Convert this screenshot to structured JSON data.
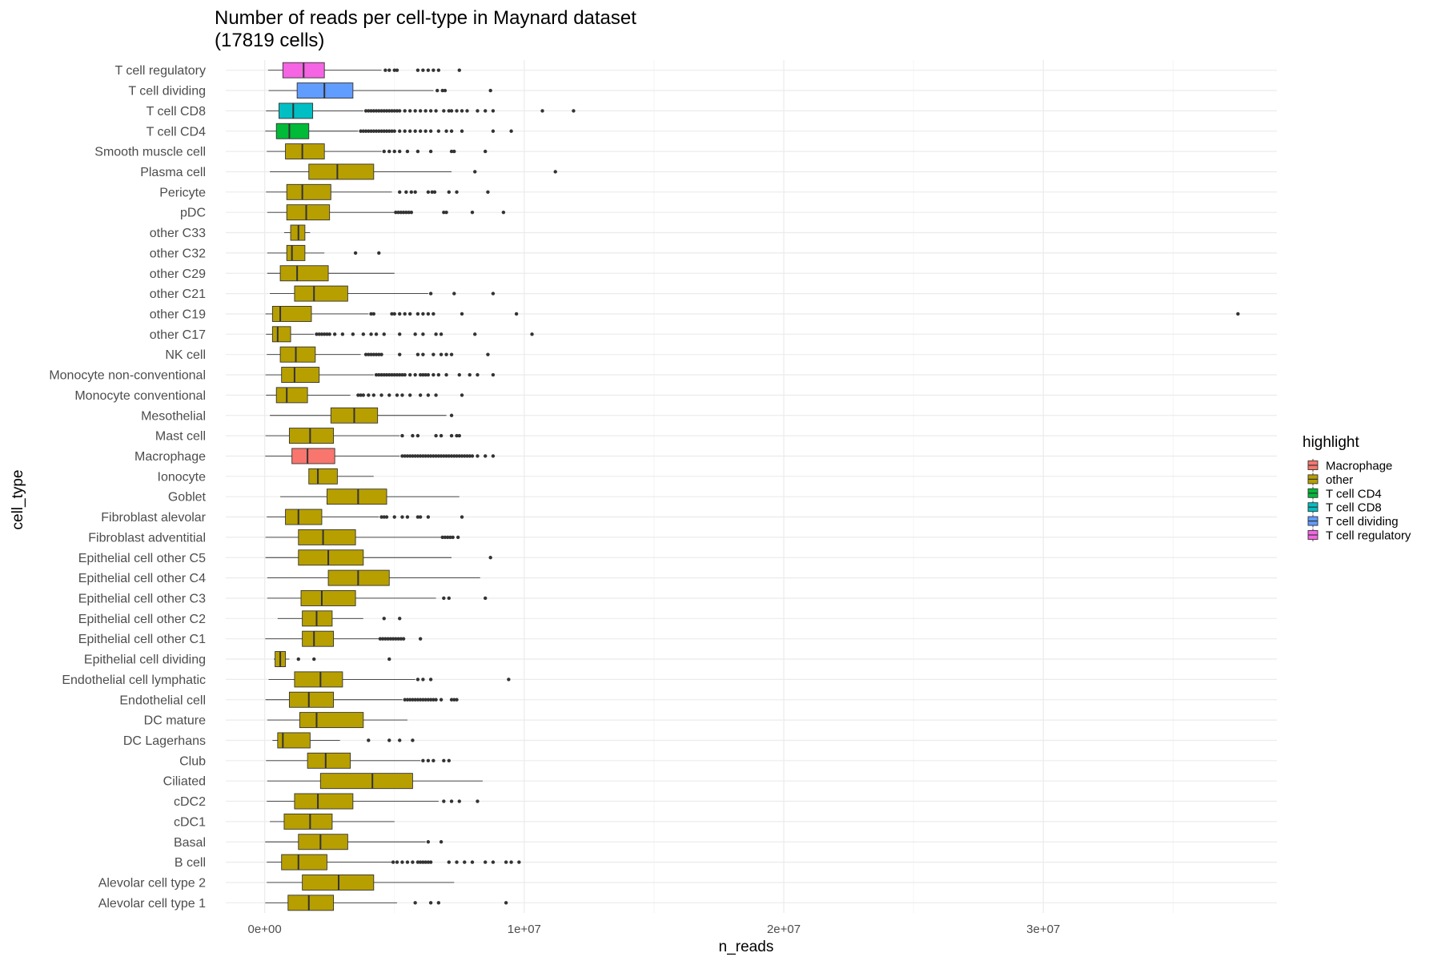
{
  "chart_data": {
    "type": "boxplot",
    "orientation": "horizontal",
    "title": [
      "Number of reads per cell-type in Maynard dataset",
      "(17819 cells)"
    ],
    "xlabel": "n_reads",
    "ylabel": "cell_type",
    "xlim": [
      -1500000,
      39000000
    ],
    "x_ticks": [
      {
        "value": 0,
        "label": "0e+00"
      },
      {
        "value": 10000000,
        "label": "1e+07"
      },
      {
        "value": 20000000,
        "label": "2e+07"
      },
      {
        "value": 30000000,
        "label": "3e+07"
      }
    ],
    "x_minor_ticks": [
      5000000,
      15000000,
      25000000,
      35000000
    ],
    "grid": true,
    "legend": {
      "title": "highlight",
      "position": "right",
      "entries": [
        {
          "label": "Macrophage",
          "color": "#F8766D"
        },
        {
          "label": "other",
          "color": "#B79F00"
        },
        {
          "label": "T cell CD4",
          "color": "#00BA38"
        },
        {
          "label": "T cell CD8",
          "color": "#00BFC4"
        },
        {
          "label": "T cell dividing",
          "color": "#619CFF"
        },
        {
          "label": "T cell regulatory",
          "color": "#F564E3"
        }
      ]
    },
    "categories": [
      {
        "name": "T cell regulatory",
        "group": "T cell regulatory",
        "stats": [
          130000,
          700000,
          1500000,
          2300000,
          4500000
        ],
        "outliers": [
          4650000,
          4800000,
          5000000,
          5100000,
          5900000,
          6100000,
          6300000,
          6500000,
          6700000,
          7500000
        ]
      },
      {
        "name": "T cell dividing",
        "group": "T cell dividing",
        "stats": [
          150000,
          1250000,
          2300000,
          3400000,
          6500000
        ],
        "outliers": [
          6650000,
          6850000,
          6950000,
          8700000
        ]
      },
      {
        "name": "T cell CD8",
        "group": "T cell CD8",
        "stats": [
          50000,
          550000,
          1100000,
          1850000,
          3800000
        ],
        "outliers": [
          3900000,
          4000000,
          4100000,
          4200000,
          4300000,
          4400000,
          4500000,
          4600000,
          4700000,
          4800000,
          4900000,
          5000000,
          5100000,
          5200000,
          5400000,
          5600000,
          5800000,
          6000000,
          6200000,
          6400000,
          6600000,
          6900000,
          7100000,
          7200000,
          7400000,
          7600000,
          7800000,
          8200000,
          8500000,
          8800000,
          10700000,
          11900000
        ]
      },
      {
        "name": "T cell CD4",
        "group": "T cell CD4",
        "stats": [
          20000,
          450000,
          950000,
          1700000,
          3600000
        ],
        "outliers": [
          3700000,
          3800000,
          3900000,
          4000000,
          4100000,
          4200000,
          4300000,
          4400000,
          4500000,
          4600000,
          4700000,
          4800000,
          4900000,
          5000000,
          5200000,
          5400000,
          5600000,
          5800000,
          6000000,
          6200000,
          6400000,
          6700000,
          7000000,
          7200000,
          7600000,
          8800000,
          9500000
        ]
      },
      {
        "name": "Smooth muscle cell",
        "group": "other",
        "stats": [
          80000,
          800000,
          1450000,
          2300000,
          4500000
        ],
        "outliers": [
          4600000,
          4800000,
          5000000,
          5200000,
          5500000,
          5900000,
          6400000,
          7200000,
          7300000,
          8500000
        ]
      },
      {
        "name": "Plasma cell",
        "group": "other",
        "stats": [
          200000,
          1700000,
          2800000,
          4200000,
          7200000
        ],
        "outliers": [
          8100000,
          11200000
        ]
      },
      {
        "name": "Pericyte",
        "group": "other",
        "stats": [
          50000,
          850000,
          1450000,
          2550000,
          4900000
        ],
        "outliers": [
          5200000,
          5450000,
          5650000,
          5800000,
          6300000,
          6450000,
          6550000,
          7100000,
          7400000,
          8600000
        ]
      },
      {
        "name": "pDC",
        "group": "other",
        "stats": [
          100000,
          850000,
          1600000,
          2500000,
          5000000
        ],
        "outliers": [
          5050000,
          5150000,
          5250000,
          5350000,
          5450000,
          5550000,
          5650000,
          6900000,
          7000000,
          8000000,
          9200000
        ]
      },
      {
        "name": "other C33",
        "group": "other",
        "stats": [
          750000,
          1000000,
          1300000,
          1550000,
          1750000
        ],
        "outliers": []
      },
      {
        "name": "other C32",
        "group": "other",
        "stats": [
          100000,
          850000,
          1050000,
          1550000,
          2300000
        ],
        "outliers": [
          3500000,
          4400000
        ]
      },
      {
        "name": "other C29",
        "group": "other",
        "stats": [
          100000,
          600000,
          1250000,
          2450000,
          5000000
        ],
        "outliers": []
      },
      {
        "name": "other C21",
        "group": "other",
        "stats": [
          200000,
          1150000,
          1900000,
          3200000,
          6300000
        ],
        "outliers": [
          6400000,
          7300000,
          8800000
        ]
      },
      {
        "name": "other C19",
        "group": "other",
        "stats": [
          30000,
          300000,
          600000,
          1800000,
          4000000
        ],
        "outliers": [
          4100000,
          4200000,
          4900000,
          5000000,
          5200000,
          5400000,
          5600000,
          5900000,
          6100000,
          6300000,
          6500000,
          7600000,
          9700000,
          37500000
        ]
      },
      {
        "name": "other C17",
        "group": "other",
        "stats": [
          50000,
          300000,
          500000,
          1000000,
          1900000
        ],
        "outliers": [
          2000000,
          2100000,
          2200000,
          2300000,
          2400000,
          2500000,
          2700000,
          3000000,
          3400000,
          3800000,
          4100000,
          4300000,
          4600000,
          5200000,
          5800000,
          6100000,
          6600000,
          6800000,
          8100000,
          10300000
        ]
      },
      {
        "name": "NK cell",
        "group": "other",
        "stats": [
          80000,
          600000,
          1200000,
          1950000,
          3700000
        ],
        "outliers": [
          3900000,
          4000000,
          4100000,
          4200000,
          4300000,
          4400000,
          4500000,
          5200000,
          5900000,
          6100000,
          6500000,
          6800000,
          7000000,
          7200000,
          8600000
        ]
      },
      {
        "name": "Monocyte non-conventional",
        "group": "other",
        "stats": [
          30000,
          650000,
          1150000,
          2100000,
          4200000
        ],
        "outliers": [
          4300000,
          4400000,
          4500000,
          4600000,
          4700000,
          4800000,
          4900000,
          5000000,
          5100000,
          5200000,
          5300000,
          5400000,
          5600000,
          5800000,
          6000000,
          6100000,
          6200000,
          6300000,
          6500000,
          6700000,
          7000000,
          7500000,
          7900000,
          8200000,
          8800000
        ]
      },
      {
        "name": "Monocyte conventional",
        "group": "other",
        "stats": [
          50000,
          450000,
          850000,
          1650000,
          3300000
        ],
        "outliers": [
          3600000,
          3700000,
          3800000,
          4000000,
          4200000,
          4500000,
          4800000,
          5100000,
          5300000,
          5600000,
          6000000,
          6300000,
          6600000,
          7600000
        ]
      },
      {
        "name": "Mesothelial",
        "group": "other",
        "stats": [
          200000,
          2550000,
          3450000,
          4350000,
          7000000
        ],
        "outliers": [
          7200000
        ]
      },
      {
        "name": "Mast cell",
        "group": "other",
        "stats": [
          30000,
          950000,
          1750000,
          2650000,
          5200000
        ],
        "outliers": [
          5300000,
          5700000,
          5900000,
          6600000,
          6800000,
          7200000,
          7400000,
          7500000
        ]
      },
      {
        "name": "Macrophage",
        "group": "Macrophage",
        "stats": [
          20000,
          1050000,
          1650000,
          2700000,
          5200000
        ],
        "outliers": [
          5300000,
          5400000,
          5500000,
          5600000,
          5700000,
          5800000,
          5900000,
          6000000,
          6100000,
          6200000,
          6300000,
          6400000,
          6500000,
          6600000,
          6700000,
          6800000,
          6900000,
          7000000,
          7100000,
          7200000,
          7300000,
          7400000,
          7500000,
          7600000,
          7700000,
          7800000,
          7900000,
          8000000,
          8200000,
          8500000,
          8800000
        ]
      },
      {
        "name": "Ionocyte",
        "group": "other",
        "stats": [
          1700000,
          1700000,
          2050000,
          2800000,
          4200000
        ],
        "outliers": []
      },
      {
        "name": "Goblet",
        "group": "other",
        "stats": [
          600000,
          2400000,
          3600000,
          4700000,
          7500000
        ],
        "outliers": []
      },
      {
        "name": "Fibroblast alevolar",
        "group": "other",
        "stats": [
          80000,
          800000,
          1300000,
          2200000,
          4400000
        ],
        "outliers": [
          4500000,
          4600000,
          4700000,
          5000000,
          5300000,
          5500000,
          5900000,
          6000000,
          6300000,
          7600000
        ]
      },
      {
        "name": "Fibroblast adventitial",
        "group": "other",
        "stats": [
          30000,
          1300000,
          2250000,
          3500000,
          6800000
        ],
        "outliers": [
          6850000,
          6950000,
          7050000,
          7150000,
          7250000,
          7450000
        ]
      },
      {
        "name": "Epithelial cell other C5",
        "group": "other",
        "stats": [
          30000,
          1300000,
          2450000,
          3800000,
          7200000
        ],
        "outliers": [
          8700000
        ]
      },
      {
        "name": "Epithelial cell other C4",
        "group": "other",
        "stats": [
          100000,
          2450000,
          3600000,
          4800000,
          8300000
        ],
        "outliers": []
      },
      {
        "name": "Epithelial cell other C3",
        "group": "other",
        "stats": [
          100000,
          1400000,
          2200000,
          3500000,
          6600000
        ],
        "outliers": [
          6900000,
          7100000,
          8500000
        ]
      },
      {
        "name": "Epithelial cell other C2",
        "group": "other",
        "stats": [
          500000,
          1450000,
          2000000,
          2600000,
          3800000
        ],
        "outliers": [
          4600000,
          5200000
        ]
      },
      {
        "name": "Epithelial cell other C1",
        "group": "other",
        "stats": [
          20000,
          1450000,
          1900000,
          2650000,
          4400000
        ],
        "outliers": [
          4450000,
          4550000,
          4650000,
          4750000,
          4850000,
          4950000,
          5050000,
          5150000,
          5250000,
          5350000,
          6000000
        ]
      },
      {
        "name": "Epithelial cell dividing",
        "group": "other",
        "stats": [
          350000,
          400000,
          600000,
          800000,
          950000
        ],
        "outliers": [
          1300000,
          1900000,
          4800000
        ]
      },
      {
        "name": "Endothelial cell lymphatic",
        "group": "other",
        "stats": [
          150000,
          1150000,
          2150000,
          3000000,
          5800000
        ],
        "outliers": [
          5900000,
          6100000,
          6400000,
          9400000
        ]
      },
      {
        "name": "Endothelial cell",
        "group": "other",
        "stats": [
          30000,
          950000,
          1700000,
          2650000,
          5300000
        ],
        "outliers": [
          5400000,
          5500000,
          5600000,
          5700000,
          5800000,
          5900000,
          6000000,
          6100000,
          6200000,
          6300000,
          6400000,
          6500000,
          6600000,
          6800000,
          7200000,
          7300000,
          7400000
        ]
      },
      {
        "name": "DC mature",
        "group": "other",
        "stats": [
          100000,
          1350000,
          2000000,
          3800000,
          5500000
        ],
        "outliers": []
      },
      {
        "name": "DC Lagerhans",
        "group": "other",
        "stats": [
          300000,
          500000,
          700000,
          1750000,
          2900000
        ],
        "outliers": [
          4000000,
          4800000,
          5200000,
          5700000
        ]
      },
      {
        "name": "Club",
        "group": "other",
        "stats": [
          50000,
          1650000,
          2350000,
          3300000,
          6000000
        ],
        "outliers": [
          6100000,
          6300000,
          6500000,
          6900000,
          7100000
        ]
      },
      {
        "name": "Ciliated",
        "group": "other",
        "stats": [
          100000,
          2150000,
          4150000,
          5700000,
          8400000
        ],
        "outliers": []
      },
      {
        "name": "cDC2",
        "group": "other",
        "stats": [
          80000,
          1150000,
          2050000,
          3400000,
          6700000
        ],
        "outliers": [
          6900000,
          7200000,
          7500000,
          8200000
        ]
      },
      {
        "name": "cDC1",
        "group": "other",
        "stats": [
          200000,
          750000,
          1750000,
          2600000,
          5000000
        ],
        "outliers": []
      },
      {
        "name": "Basal",
        "group": "other",
        "stats": [
          20000,
          1300000,
          2150000,
          3200000,
          6200000
        ],
        "outliers": [
          6300000,
          6800000
        ]
      },
      {
        "name": "B cell",
        "group": "other",
        "stats": [
          80000,
          650000,
          1300000,
          2400000,
          4900000
        ],
        "outliers": [
          4950000,
          5100000,
          5300000,
          5500000,
          5700000,
          5900000,
          6000000,
          6100000,
          6200000,
          6300000,
          6400000,
          7100000,
          7400000,
          7700000,
          8000000,
          8500000,
          8800000,
          9300000,
          9500000,
          9800000
        ]
      },
      {
        "name": "Alevolar cell type 2",
        "group": "other",
        "stats": [
          80000,
          1450000,
          2850000,
          4200000,
          7300000
        ],
        "outliers": []
      },
      {
        "name": "Alevolar cell type 1",
        "group": "other",
        "stats": [
          20000,
          900000,
          1700000,
          2650000,
          5100000
        ],
        "outliers": [
          5800000,
          6400000,
          6700000,
          9300000
        ]
      }
    ]
  }
}
